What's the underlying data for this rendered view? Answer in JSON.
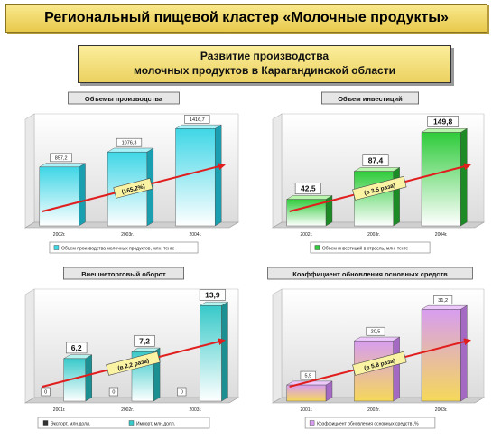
{
  "header": {
    "title": "Региональный пищевой кластер «Молочные продукты»",
    "subtitle_line1": "Развитие производства",
    "subtitle_line2": "молочных продуктов в Карагандинской области"
  },
  "chart_data": [
    {
      "type": "bar",
      "title": "Объемы производства",
      "categories": [
        "2002г.",
        "2003г.",
        "2004г."
      ],
      "values": [
        857.2,
        1076.3,
        1416.7
      ],
      "value_labels": [
        "857,2",
        "1076,3",
        "1416,7"
      ],
      "ylim": [
        0,
        1500
      ],
      "legend": [
        "Объем производства молочных продуктов, млн. тенге"
      ],
      "legend_position": "bottom",
      "annotation": "(165,2%)",
      "colors": {
        "bar": "#3fd6e6",
        "bar_top": "#a9f2f8",
        "bar_side": "#1a9fb0",
        "arrow": "#e11e1e"
      }
    },
    {
      "type": "bar",
      "title": "Объем инвестиций",
      "categories": [
        "2002г.",
        "2003г.",
        "2004г."
      ],
      "values": [
        42.5,
        87.4,
        149.8
      ],
      "value_labels": [
        "42,5",
        "87,4",
        "149,8"
      ],
      "ylim": [
        0,
        165
      ],
      "legend": [
        "Объем инвестиций в отрасль, млн. тенге"
      ],
      "legend_position": "bottom",
      "annotation": "(в 3,5 раза)",
      "colors": {
        "bar": "#2ecb3a",
        "bar_top": "#b9f5ad",
        "bar_side": "#1c8a25",
        "arrow": "#e11e1e"
      }
    },
    {
      "type": "bar",
      "title": "Внешнеторговый оборот",
      "categories": [
        "2001г.",
        "2002г.",
        "2003г."
      ],
      "series": [
        {
          "name": "Экспорт, млн.долл.",
          "values": [
            0,
            0,
            0
          ],
          "labels": [
            "0",
            "0",
            "0"
          ]
        },
        {
          "name": "Импорт, млн.долл.",
          "values": [
            6.2,
            7.2,
            13.9
          ],
          "labels": [
            "6,2",
            "7,2",
            "13,9"
          ]
        }
      ],
      "ylim": [
        0,
        15
      ],
      "legend_position": "bottom",
      "annotation": "(в 2,2 раза)",
      "colors": {
        "bar": "#38c9c9",
        "bar_top": "#b6f3ef",
        "bar_side": "#1c8f92",
        "export": "#333333",
        "arrow": "#e11e1e"
      }
    },
    {
      "type": "bar",
      "title": "Коэффициент обновления основных средств",
      "categories": [
        "2001г.",
        "2002г.",
        "2003г."
      ],
      "values": [
        5.5,
        20.5,
        31.2
      ],
      "value_labels": [
        "5,5",
        "20,5",
        "31,2"
      ],
      "ylim": [
        0,
        35
      ],
      "legend": [
        "Коэффициент обновления основных средств ,%"
      ],
      "legend_position": "bottom",
      "annotation": "(в 5,8 раза)",
      "colors": {
        "bar": "#d79df0",
        "bar_bottom": "#f5d85a",
        "bar_top": "#ecc8fb",
        "bar_side": "#a469c2",
        "arrow": "#e11e1e"
      }
    }
  ]
}
